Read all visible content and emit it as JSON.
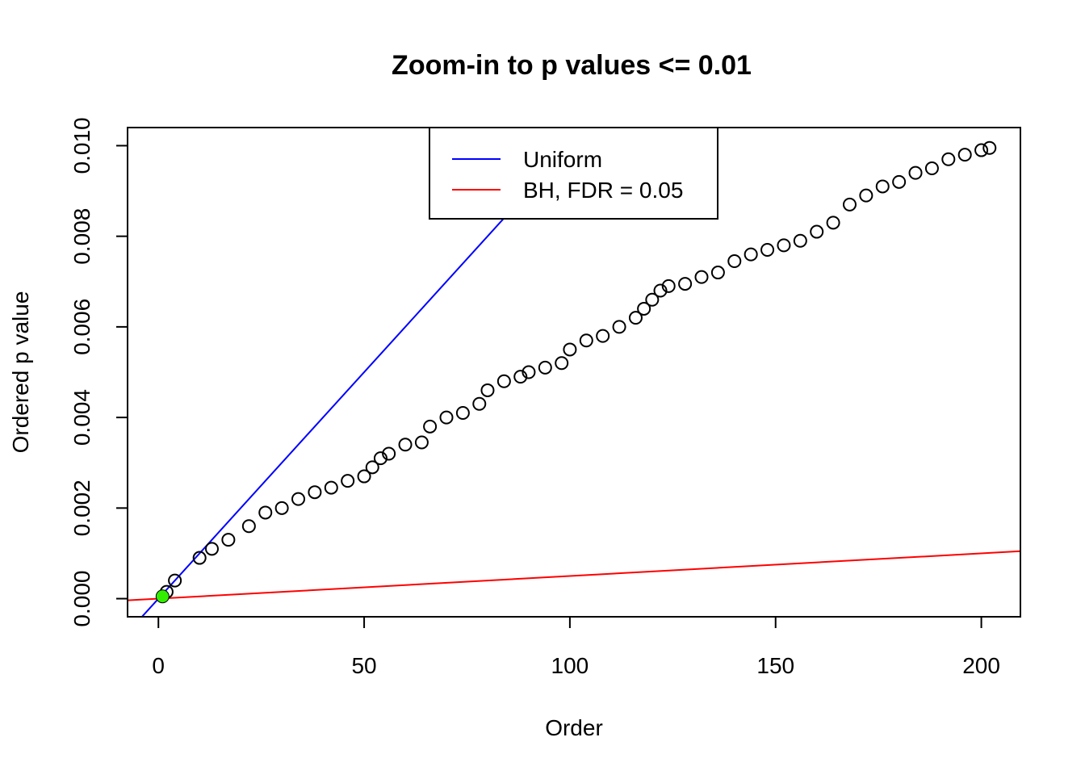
{
  "chart_data": {
    "type": "scatter",
    "title": "Zoom-in to p values <= 0.01",
    "xlabel": "Order",
    "ylabel": "Ordered p value",
    "xlim": [
      -7.5,
      209.5
    ],
    "ylim": [
      -0.0004,
      0.0104
    ],
    "x_ticks": [
      0,
      50,
      100,
      150,
      200
    ],
    "x_tick_labels": [
      "0",
      "50",
      "100",
      "150",
      "200"
    ],
    "y_ticks": [
      0,
      0.002,
      0.004,
      0.006,
      0.008,
      0.01
    ],
    "y_tick_labels": [
      "0.000",
      "0.002",
      "0.004",
      "0.006",
      "0.008",
      "0.010"
    ],
    "grid": false,
    "legend": {
      "position": "top-center",
      "entries": [
        {
          "label": "Uniform",
          "color": "#0000ff"
        },
        {
          "label": "BH, FDR = 0.05",
          "color": "#ff0000"
        }
      ]
    },
    "lines": [
      {
        "name": "Uniform",
        "color": "#0000ff",
        "intercept": 0,
        "slope": 0.0001
      },
      {
        "name": "BH, FDR = 0.05",
        "color": "#ff0000",
        "intercept": 0,
        "slope": 5e-06
      }
    ],
    "series": [
      {
        "marker": "open-circle",
        "color": "#000000",
        "x": [
          1,
          2,
          4,
          10,
          13,
          17,
          22,
          26,
          30,
          34,
          38,
          42,
          46,
          50,
          52,
          54,
          56,
          60,
          64,
          66,
          70,
          74,
          78,
          80,
          84,
          88,
          90,
          94,
          98,
          100,
          104,
          108,
          112,
          116,
          118,
          120,
          122,
          124,
          128,
          132,
          136,
          140,
          144,
          148,
          152,
          156,
          160,
          164,
          168,
          172,
          176,
          180,
          184,
          188,
          192,
          196,
          200,
          202
        ],
        "values": [
          5e-05,
          0.00015,
          0.0004,
          0.0009,
          0.0011,
          0.0013,
          0.0016,
          0.0019,
          0.002,
          0.0022,
          0.00235,
          0.00245,
          0.0026,
          0.0027,
          0.0029,
          0.0031,
          0.0032,
          0.0034,
          0.00345,
          0.0038,
          0.004,
          0.0041,
          0.0043,
          0.0046,
          0.0048,
          0.0049,
          0.005,
          0.0051,
          0.0052,
          0.0055,
          0.0057,
          0.0058,
          0.006,
          0.0062,
          0.0064,
          0.0066,
          0.0068,
          0.0069,
          0.00695,
          0.0071,
          0.0072,
          0.00745,
          0.0076,
          0.0077,
          0.0078,
          0.0079,
          0.0081,
          0.0083,
          0.0087,
          0.0089,
          0.0091,
          0.0092,
          0.0094,
          0.0095,
          0.0097,
          0.0098,
          0.0099,
          0.00995
        ]
      },
      {
        "marker": "filled-circle",
        "color": "#33ee00",
        "x": [
          1
        ],
        "values": [
          5e-05
        ]
      }
    ]
  }
}
